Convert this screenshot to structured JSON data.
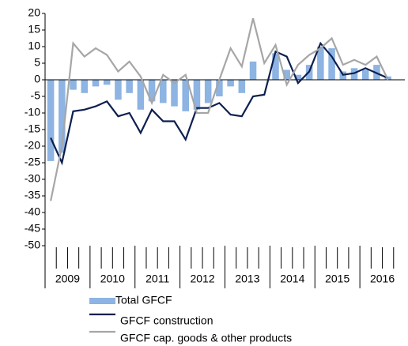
{
  "chart_data": {
    "type": "bar_line",
    "years": [
      "2009",
      "2010",
      "2011",
      "2012",
      "2013",
      "2014",
      "2015",
      "2016"
    ],
    "ylim": [
      -50,
      20
    ],
    "yticks": [
      20,
      15,
      10,
      5,
      0,
      -5,
      -10,
      -15,
      -20,
      -25,
      -30,
      -35,
      -40,
      -45,
      -50
    ],
    "series": [
      {
        "name": "Total GFCF",
        "kind": "bar",
        "color": "#8db4e2",
        "values": [
          -24.5,
          -22,
          -3,
          -4,
          -2,
          -1.5,
          -6,
          -4,
          -9,
          -6.5,
          -7,
          -8,
          -9.5,
          -9,
          -7,
          -5,
          -2,
          -4,
          5.5,
          0,
          8,
          3,
          1.5,
          4.5,
          10,
          9.5,
          2.5,
          3.5,
          3,
          4.5,
          1
        ]
      },
      {
        "name": "GFCF construction",
        "kind": "line",
        "color": "#0c1f4f",
        "values": [
          -17.5,
          -25,
          -9.5,
          -9,
          -8,
          -6.5,
          -11,
          -10,
          -16,
          -9,
          -12.5,
          -12.5,
          -18,
          -8.5,
          -8.5,
          -7,
          -10.5,
          -11,
          -5,
          -4.5,
          8.5,
          7,
          -1,
          2.5,
          11,
          7,
          1.5,
          2,
          3.5,
          2,
          0.5
        ]
      },
      {
        "name": "GFCF cap. goods & other products",
        "kind": "line",
        "color": "#a6a6a6",
        "values": [
          -36.5,
          -20,
          11,
          7,
          9.5,
          7.5,
          2.5,
          5.5,
          1,
          -7,
          1.5,
          -1,
          1.5,
          -10,
          -10,
          0,
          9.5,
          4,
          18.5,
          5,
          10.5,
          -1.5,
          4.5,
          7.5,
          9.5,
          12.5,
          4.5,
          6,
          4.5,
          7,
          0
        ]
      }
    ]
  }
}
